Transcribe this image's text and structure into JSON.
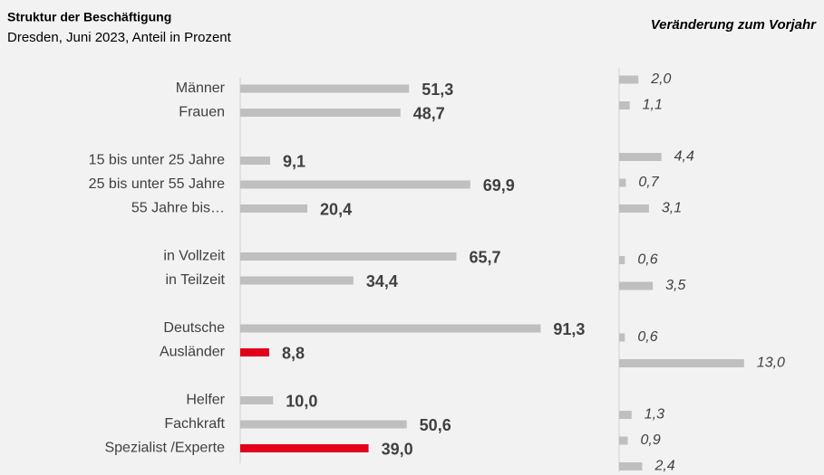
{
  "chart_data": [
    {
      "type": "bar",
      "orientation": "horizontal",
      "title": "Struktur der Beschäftigung",
      "subtitle": "Dresden, Juni 2023, Anteil in Prozent",
      "categories": [
        "Männer",
        "Frauen",
        null,
        "15 bis unter 25 Jahre",
        "25 bis unter 55 Jahre",
        "55 Jahre bis…",
        null,
        "in Vollzeit",
        "in Teilzeit",
        null,
        "Deutsche",
        "Ausländer",
        null,
        "Helfer",
        "Fachkraft",
        "Spezialist /Experte"
      ],
      "values": [
        51.3,
        48.7,
        null,
        9.1,
        69.9,
        20.4,
        null,
        65.7,
        34.4,
        null,
        91.3,
        8.8,
        null,
        10.0,
        50.6,
        39.0
      ],
      "value_labels": [
        "51,3",
        "48,7",
        null,
        "9,1",
        "69,9",
        "20,4",
        null,
        "65,7",
        "34,4",
        null,
        "91,3",
        "8,8",
        null,
        "10,0",
        "50,6",
        "39,0"
      ],
      "colors": [
        "#bfbfbf",
        "#bfbfbf",
        null,
        "#bfbfbf",
        "#bfbfbf",
        "#bfbfbf",
        null,
        "#bfbfbf",
        "#bfbfbf",
        null,
        "#bfbfbf",
        "#e2001a",
        null,
        "#bfbfbf",
        "#bfbfbf",
        "#e2001a"
      ],
      "xlim": [
        0,
        100
      ]
    },
    {
      "type": "bar",
      "orientation": "horizontal",
      "title": "Veränderung zum Vorjahr",
      "values": [
        2.0,
        1.1,
        null,
        4.4,
        0.7,
        3.1,
        null,
        0.6,
        3.5,
        null,
        0.6,
        13.0,
        null,
        1.3,
        0.9,
        2.4
      ],
      "value_labels": [
        "2,0",
        "1,1",
        null,
        "4,4",
        "0,7",
        "3,1",
        null,
        "0,6",
        "3,5",
        null,
        "0,6",
        "13,0",
        null,
        "1,3",
        "0,9",
        "2,4"
      ],
      "color": "#bfbfbf",
      "xlim": [
        0,
        15
      ]
    }
  ]
}
